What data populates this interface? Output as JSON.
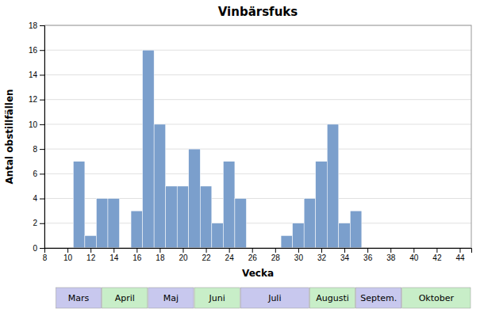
{
  "chart_data": {
    "type": "bar",
    "title": "Vinbärsfuks",
    "x_label": "Vecka",
    "y_label": "Antal obstillfällen",
    "x": [
      11,
      12,
      13,
      14,
      16,
      17,
      18,
      19,
      20,
      21,
      22,
      23,
      24,
      25,
      29,
      30,
      31,
      32,
      33,
      34,
      35
    ],
    "values": [
      7,
      1,
      4,
      4,
      3,
      16,
      10,
      5,
      5,
      8,
      5,
      2,
      7,
      4,
      1,
      2,
      4,
      7,
      10,
      2,
      3
    ],
    "color": "#7b9fcc",
    "xlim": [
      8,
      45
    ],
    "xticks": [
      8,
      10,
      12,
      14,
      16,
      18,
      20,
      22,
      24,
      26,
      28,
      30,
      32,
      34,
      36,
      38,
      40,
      42,
      44
    ],
    "ylim": [
      0,
      18
    ],
    "yticks": [
      0,
      2,
      4,
      6,
      8,
      10,
      12,
      14,
      16,
      18
    ],
    "grid": true,
    "annotations": [
      {
        "text": "Mars",
        "x_start": 9,
        "x_end": 13,
        "color": "#c8c8ee"
      },
      {
        "text": "April",
        "x_start": 13,
        "x_end": 17,
        "color": "#c8eec8"
      },
      {
        "text": "Maj",
        "x_start": 17,
        "x_end": 21,
        "color": "#c8c8ee"
      },
      {
        "text": "Juni",
        "x_start": 21,
        "x_end": 25,
        "color": "#c8eec8"
      },
      {
        "text": "Juli",
        "x_start": 25,
        "x_end": 31,
        "color": "#c8c8ee"
      },
      {
        "text": "Augusti",
        "x_start": 31,
        "x_end": 35,
        "color": "#c8eec8"
      },
      {
        "text": "Septem.",
        "x_start": 35,
        "x_end": 39,
        "color": "#c8c8ee"
      },
      {
        "text": "Oktober",
        "x_start": 39,
        "x_end": 45,
        "color": "#c8eec8"
      }
    ]
  }
}
